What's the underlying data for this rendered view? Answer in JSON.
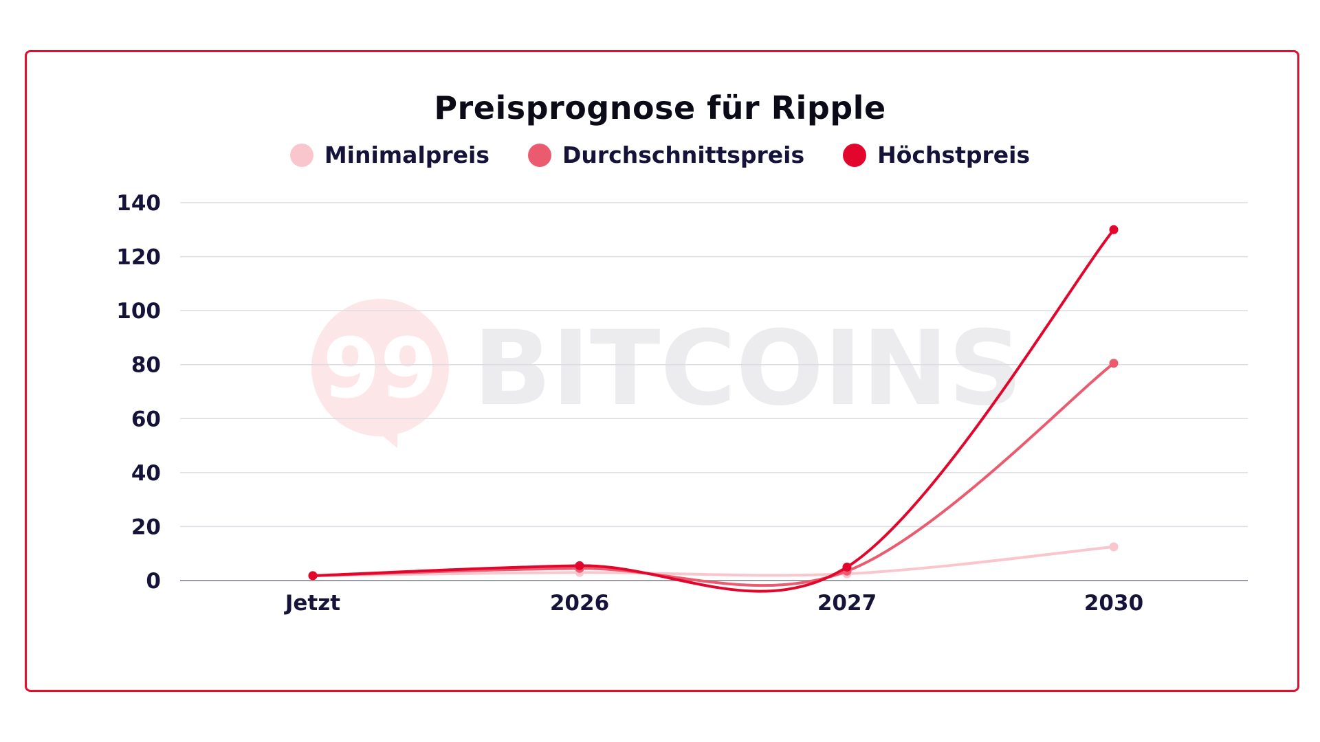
{
  "watermark": {
    "logo_number": "99",
    "brand": "BITCOINS"
  },
  "chart_data": {
    "type": "line",
    "title": "Preisprognose für Ripple",
    "xlabel": "",
    "ylabel": "",
    "categories": [
      "Jetzt",
      "2026",
      "2027",
      "2030"
    ],
    "ylim": [
      0,
      140
    ],
    "yticks": [
      0,
      20,
      40,
      60,
      80,
      100,
      120,
      140
    ],
    "grid": true,
    "legend_position": "top",
    "series": [
      {
        "name": "Minimalpreis",
        "color": "#f9c6cd",
        "values": [
          1.8,
          3.0,
          2.5,
          12.5
        ]
      },
      {
        "name": "Durchschnittspreis",
        "color": "#ea5b6f",
        "values": [
          1.8,
          4.5,
          3.5,
          80.5
        ]
      },
      {
        "name": "Höchstpreis",
        "color": "#e2062c",
        "values": [
          1.8,
          5.5,
          5.0,
          130.0
        ]
      }
    ]
  }
}
